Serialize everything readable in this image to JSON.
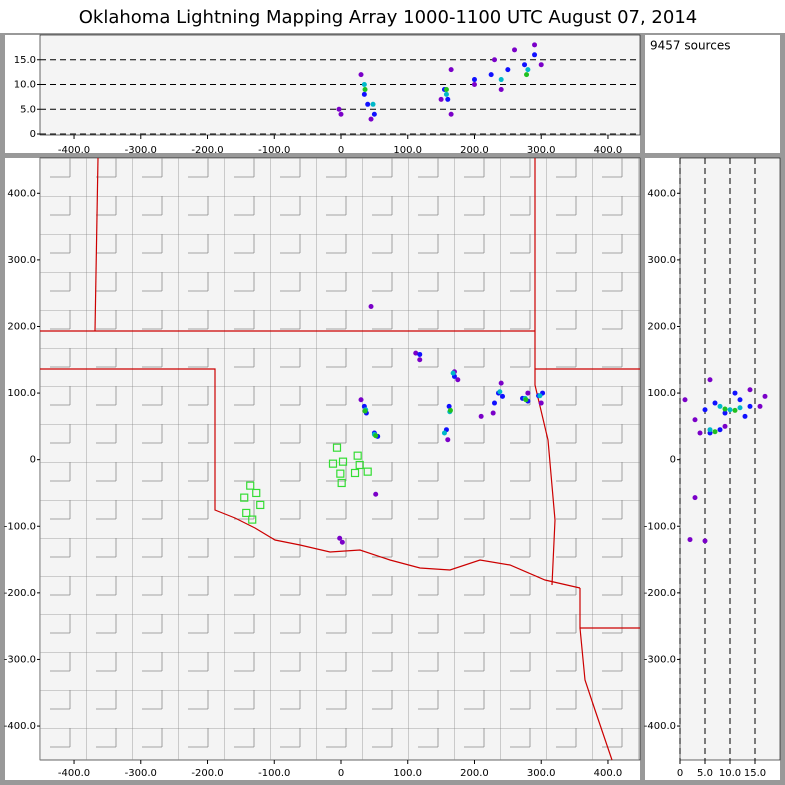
{
  "title": "Oklahoma Lightning Mapping Array   1000-1100 UTC  August 07, 2014",
  "annotation": "9457 sources",
  "chart_data": [
    {
      "type": "scatter",
      "grid": true,
      "xlim": [
        -451,
        448
      ],
      "ylim": [
        -0.2,
        20
      ],
      "xticks": [
        {
          "value": -400,
          "label": "-400.0"
        },
        {
          "value": -300,
          "label": "-300.0"
        },
        {
          "value": -200,
          "label": "-200.0"
        },
        {
          "value": -100,
          "label": "-100.0"
        },
        0,
        {
          "value": 100,
          "label": "100.0"
        },
        {
          "value": 200,
          "label": "200.0"
        },
        {
          "value": 300,
          "label": "300.0"
        },
        {
          "value": 400,
          "label": "400.0"
        }
      ],
      "yticks": [
        0,
        {
          "value": 5,
          "label": "5.0"
        },
        {
          "value": 10,
          "label": "10.0"
        },
        {
          "value": 15,
          "label": "15.0"
        }
      ],
      "series": [
        {
          "color": "#7a00c8",
          "x": [
            -3,
            0,
            30,
            45,
            150,
            165,
            200,
            230,
            260,
            290,
            300,
            240,
            165
          ],
          "values": [
            5,
            4,
            12,
            3,
            7,
            13,
            10,
            15,
            17,
            18,
            14,
            9,
            4
          ]
        },
        {
          "color": "#1010ff",
          "x": [
            35,
            40,
            50,
            155,
            160,
            225,
            250,
            275,
            290,
            200
          ],
          "values": [
            8,
            6,
            4,
            9,
            7,
            12,
            13,
            14,
            16,
            11
          ]
        },
        {
          "color": "#00b8c8",
          "x": [
            35,
            48,
            158,
            240,
            280
          ],
          "values": [
            10,
            6,
            8,
            11,
            13
          ]
        },
        {
          "color": "#20c020",
          "x": [
            36,
            158,
            278
          ],
          "values": [
            9,
            9,
            12
          ]
        }
      ]
    },
    {
      "type": "scatter",
      "grid": false,
      "xlim": [
        -451,
        448
      ],
      "ylim": [
        -451,
        453
      ],
      "xticks": [
        {
          "value": -400,
          "label": "-400.0"
        },
        {
          "value": -300,
          "label": "-300.0"
        },
        {
          "value": -200,
          "label": "-200.0"
        },
        {
          "value": -100,
          "label": "-100.0"
        },
        0,
        {
          "value": 100,
          "label": "100.0"
        },
        {
          "value": 200,
          "label": "200.0"
        },
        {
          "value": 300,
          "label": "300.0"
        },
        {
          "value": 400,
          "label": "400.0"
        }
      ],
      "yticks": [
        {
          "value": -400,
          "label": "-400.0"
        },
        {
          "value": -300,
          "label": "-300.0"
        },
        {
          "value": -200,
          "label": "-200.0"
        },
        {
          "value": -100,
          "label": "-100.0"
        },
        0,
        {
          "value": 100,
          "label": "100.0"
        },
        {
          "value": 200,
          "label": "200.0"
        },
        {
          "value": 300,
          "label": "300.0"
        },
        {
          "value": 400,
          "label": "400.0"
        }
      ],
      "series": [
        {
          "color": "#7a00c8",
          "x": [
            -2,
            2,
            45,
            112,
            118,
            170,
            175,
            228,
            240,
            280,
            300,
            210,
            52,
            160,
            30
          ],
          "values": [
            -118,
            -124,
            230,
            160,
            150,
            132,
            120,
            70,
            115,
            100,
            85,
            65,
            -52,
            30,
            90
          ]
        },
        {
          "color": "#1010ff",
          "x": [
            35,
            38,
            50,
            55,
            162,
            158,
            170,
            236,
            242,
            272,
            280,
            296,
            302,
            230,
            118
          ],
          "values": [
            80,
            70,
            40,
            35,
            80,
            45,
            125,
            100,
            95,
            92,
            88,
            96,
            100,
            85,
            158
          ]
        },
        {
          "color": "#00b8c8",
          "x": [
            37,
            50,
            163,
            155,
            238,
            276,
            298,
            168
          ],
          "values": [
            75,
            38,
            72,
            40,
            102,
            92,
            96,
            130
          ]
        },
        {
          "color": "#20c020",
          "x": [
            36,
            52,
            164,
            277
          ],
          "values": [
            73,
            36,
            74,
            90
          ]
        },
        {
          "color": "#33dd33",
          "marker": "square-open",
          "x": [
            -6,
            -12,
            3,
            25,
            28,
            -1,
            21,
            40,
            1,
            -136,
            -127,
            -145,
            -121,
            -142,
            -133
          ],
          "values": [
            18,
            -6,
            -3,
            6,
            -8,
            -21,
            -20,
            -18,
            -35,
            -39,
            -50,
            -57,
            -68,
            -80,
            -90
          ]
        }
      ]
    },
    {
      "type": "scatter",
      "grid": true,
      "xlim": [
        0,
        20
      ],
      "ylim": [
        -451,
        453
      ],
      "xticks": [
        0,
        {
          "value": 5,
          "label": "5.0"
        },
        {
          "value": 10,
          "label": "10.0"
        },
        {
          "value": 15,
          "label": "15.0"
        }
      ],
      "yticks": [
        {
          "value": -400,
          "label": "-400.0"
        },
        {
          "value": -300,
          "label": "-300.0"
        },
        {
          "value": -200,
          "label": "-200.0"
        },
        {
          "value": -100,
          "label": "-100.0"
        },
        0,
        {
          "value": 100,
          "label": "100.0"
        },
        {
          "value": 200,
          "label": "200.0"
        },
        {
          "value": 300,
          "label": "300.0"
        },
        {
          "value": 400,
          "label": "400.0"
        }
      ],
      "series": [
        {
          "color": "#7a00c8",
          "x": [
            1,
            3,
            3,
            2,
            5,
            6,
            14,
            17,
            16,
            9,
            4
          ],
          "values": [
            90,
            60,
            -57,
            -120,
            -122,
            120,
            105,
            95,
            80,
            50,
            40
          ]
        },
        {
          "color": "#1010ff",
          "x": [
            5,
            7,
            9,
            12,
            14,
            6,
            8,
            11,
            13
          ],
          "values": [
            75,
            85,
            70,
            90,
            80,
            40,
            45,
            100,
            65
          ]
        },
        {
          "color": "#00b8c8",
          "x": [
            8,
            10,
            12,
            6
          ],
          "values": [
            80,
            75,
            78,
            45
          ]
        },
        {
          "color": "#20c020",
          "x": [
            9,
            11,
            7
          ],
          "values": [
            76,
            74,
            42
          ]
        }
      ]
    }
  ]
}
